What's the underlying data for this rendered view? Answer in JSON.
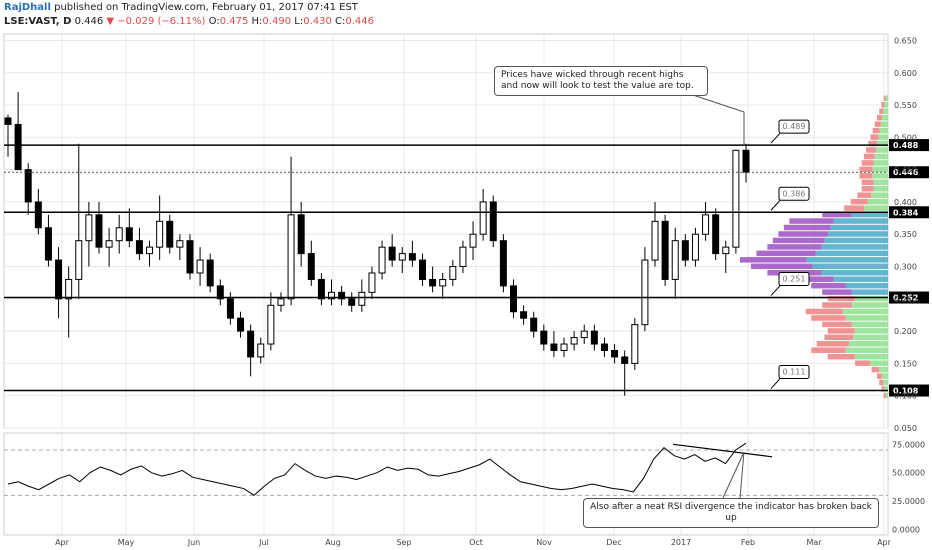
{
  "header": {
    "author": "RajDhall",
    "published": "published on TradingView.com, February 01, 2017 07:41 EST",
    "symbol": "LSE:VAST, D",
    "last": "0.446",
    "arrow": "▼",
    "change": "−0.029 (−6.11%)",
    "o_label": "O:",
    "o": "0.475",
    "h_label": "H:",
    "h": "0.490",
    "l_label": "L:",
    "l": "0.430",
    "c_label": "C:",
    "c": "0.446"
  },
  "annotations": {
    "note_price": "Prices have wicked through recent highs and now will look to test the value are top.",
    "note_rsi": "Also after a neat RSI divergence the indicator has broken back up"
  },
  "colors": {
    "up": "#ffffff",
    "down": "#000000",
    "wick": "#000000",
    "vp_up": "#48a9c5",
    "vp_down": "#9b4fc2",
    "vp_up_out": "#8ee08e",
    "vp_down_out": "#f08080",
    "level": "#000000",
    "rsi": "#000000",
    "grid": "#e8e8e8"
  },
  "chart_data": [
    {
      "type": "candlestick",
      "symbol": "LSE:VAST",
      "interval": "D",
      "ylim": [
        0.05,
        0.66
      ],
      "y_ticks": [
        "0.650",
        "0.600",
        "0.550",
        "0.500",
        "0.450",
        "0.400",
        "0.350",
        "0.300",
        "0.250",
        "0.200",
        "0.150",
        "0.100",
        "0.050"
      ],
      "x_ticks": [
        "Apr",
        "May",
        "Jun",
        "Jul",
        "Aug",
        "Sep",
        "Oct",
        "Nov",
        "Dec",
        "2017",
        "Feb",
        "Mar",
        "Apr"
      ],
      "last_price": "0.446",
      "levels": [
        {
          "value": 0.488,
          "label": "0.488",
          "callout": "0.489"
        },
        {
          "value": 0.384,
          "label": "0.384",
          "callout": "0.386"
        },
        {
          "value": 0.252,
          "label": "0.252",
          "callout": "0.251"
        },
        {
          "value": 0.108,
          "label": "0.108",
          "callout": "0.111"
        }
      ],
      "ohlc_approx": [
        [
          0.53,
          0.535,
          0.47,
          0.52
        ],
        [
          0.52,
          0.57,
          0.45,
          0.45
        ],
        [
          0.45,
          0.46,
          0.38,
          0.4
        ],
        [
          0.4,
          0.42,
          0.35,
          0.36
        ],
        [
          0.36,
          0.38,
          0.3,
          0.31
        ],
        [
          0.31,
          0.33,
          0.22,
          0.25
        ],
        [
          0.25,
          0.3,
          0.19,
          0.28
        ],
        [
          0.28,
          0.49,
          0.25,
          0.34
        ],
        [
          0.34,
          0.4,
          0.3,
          0.38
        ],
        [
          0.38,
          0.4,
          0.32,
          0.33
        ],
        [
          0.33,
          0.36,
          0.3,
          0.34
        ],
        [
          0.34,
          0.38,
          0.32,
          0.36
        ],
        [
          0.36,
          0.39,
          0.33,
          0.34
        ],
        [
          0.34,
          0.36,
          0.31,
          0.32
        ],
        [
          0.32,
          0.34,
          0.3,
          0.33
        ],
        [
          0.33,
          0.41,
          0.31,
          0.37
        ],
        [
          0.37,
          0.38,
          0.32,
          0.33
        ],
        [
          0.33,
          0.35,
          0.31,
          0.34
        ],
        [
          0.34,
          0.35,
          0.28,
          0.29
        ],
        [
          0.29,
          0.33,
          0.27,
          0.31
        ],
        [
          0.31,
          0.32,
          0.26,
          0.27
        ],
        [
          0.27,
          0.28,
          0.24,
          0.25
        ],
        [
          0.25,
          0.26,
          0.21,
          0.22
        ],
        [
          0.22,
          0.23,
          0.19,
          0.2
        ],
        [
          0.2,
          0.21,
          0.13,
          0.16
        ],
        [
          0.16,
          0.19,
          0.15,
          0.18
        ],
        [
          0.18,
          0.26,
          0.17,
          0.24
        ],
        [
          0.24,
          0.26,
          0.23,
          0.25
        ],
        [
          0.25,
          0.47,
          0.24,
          0.38
        ],
        [
          0.38,
          0.4,
          0.3,
          0.32
        ],
        [
          0.32,
          0.34,
          0.27,
          0.28
        ],
        [
          0.28,
          0.29,
          0.24,
          0.25
        ],
        [
          0.25,
          0.28,
          0.24,
          0.26
        ],
        [
          0.26,
          0.27,
          0.24,
          0.25
        ],
        [
          0.25,
          0.26,
          0.23,
          0.24
        ],
        [
          0.24,
          0.28,
          0.23,
          0.26
        ],
        [
          0.26,
          0.3,
          0.25,
          0.29
        ],
        [
          0.29,
          0.34,
          0.28,
          0.33
        ],
        [
          0.33,
          0.35,
          0.3,
          0.31
        ],
        [
          0.31,
          0.33,
          0.29,
          0.32
        ],
        [
          0.32,
          0.34,
          0.3,
          0.31
        ],
        [
          0.31,
          0.32,
          0.27,
          0.28
        ],
        [
          0.28,
          0.3,
          0.26,
          0.27
        ],
        [
          0.27,
          0.29,
          0.25,
          0.28
        ],
        [
          0.28,
          0.31,
          0.27,
          0.3
        ],
        [
          0.3,
          0.34,
          0.29,
          0.33
        ],
        [
          0.33,
          0.37,
          0.31,
          0.35
        ],
        [
          0.35,
          0.42,
          0.34,
          0.4
        ],
        [
          0.4,
          0.41,
          0.33,
          0.34
        ],
        [
          0.34,
          0.35,
          0.26,
          0.27
        ],
        [
          0.27,
          0.28,
          0.22,
          0.23
        ],
        [
          0.23,
          0.24,
          0.21,
          0.22
        ],
        [
          0.22,
          0.23,
          0.19,
          0.2
        ],
        [
          0.2,
          0.21,
          0.17,
          0.18
        ],
        [
          0.18,
          0.2,
          0.16,
          0.17
        ],
        [
          0.17,
          0.19,
          0.16,
          0.18
        ],
        [
          0.18,
          0.2,
          0.17,
          0.19
        ],
        [
          0.19,
          0.21,
          0.18,
          0.2
        ],
        [
          0.2,
          0.21,
          0.17,
          0.18
        ],
        [
          0.18,
          0.19,
          0.16,
          0.17
        ],
        [
          0.17,
          0.18,
          0.15,
          0.16
        ],
        [
          0.16,
          0.17,
          0.1,
          0.15
        ],
        [
          0.15,
          0.22,
          0.14,
          0.21
        ],
        [
          0.21,
          0.33,
          0.2,
          0.31
        ],
        [
          0.31,
          0.4,
          0.3,
          0.37
        ],
        [
          0.37,
          0.38,
          0.27,
          0.28
        ],
        [
          0.28,
          0.36,
          0.25,
          0.34
        ],
        [
          0.34,
          0.35,
          0.3,
          0.31
        ],
        [
          0.31,
          0.36,
          0.3,
          0.35
        ],
        [
          0.35,
          0.4,
          0.34,
          0.38
        ],
        [
          0.38,
          0.39,
          0.31,
          0.32
        ],
        [
          0.32,
          0.34,
          0.29,
          0.33
        ],
        [
          0.33,
          0.4,
          0.32,
          0.48
        ],
        [
          0.48,
          0.49,
          0.43,
          0.446
        ]
      ]
    },
    {
      "type": "volume_profile",
      "price_levels": [
        0.56,
        0.55,
        0.54,
        0.53,
        0.52,
        0.51,
        0.5,
        0.49,
        0.48,
        0.47,
        0.46,
        0.45,
        0.44,
        0.43,
        0.42,
        0.41,
        0.4,
        0.39,
        0.38,
        0.37,
        0.36,
        0.35,
        0.34,
        0.33,
        0.32,
        0.31,
        0.3,
        0.29,
        0.28,
        0.27,
        0.26,
        0.25,
        0.24,
        0.23,
        0.22,
        0.21,
        0.2,
        0.19,
        0.18,
        0.17,
        0.16,
        0.15,
        0.14,
        0.13,
        0.12,
        0.11,
        0.1
      ],
      "volume": [
        4,
        6,
        8,
        10,
        12,
        14,
        16,
        18,
        20,
        22,
        24,
        26,
        26,
        24,
        24,
        28,
        34,
        40,
        60,
        90,
        95,
        100,
        105,
        110,
        120,
        135,
        125,
        110,
        90,
        70,
        60,
        55,
        60,
        75,
        70,
        60,
        55,
        58,
        65,
        70,
        55,
        30,
        15,
        10,
        8,
        6,
        4
      ],
      "value_area_high": 0.384,
      "value_area_low": 0.252
    },
    {
      "type": "line",
      "name": "RSI",
      "ylim": [
        -5,
        85
      ],
      "y_ticks": [
        "75.0000",
        "50.0000",
        "25.0000",
        "0.0000"
      ],
      "bands": [
        70,
        30
      ],
      "values": [
        40,
        42,
        38,
        35,
        40,
        45,
        48,
        42,
        50,
        55,
        52,
        48,
        53,
        56,
        50,
        47,
        49,
        52,
        46,
        44,
        42,
        40,
        38,
        36,
        30,
        38,
        45,
        48,
        58,
        52,
        47,
        45,
        47,
        46,
        44,
        47,
        50,
        55,
        52,
        54,
        53,
        48,
        47,
        49,
        51,
        54,
        57,
        62,
        55,
        48,
        42,
        40,
        38,
        36,
        35,
        36,
        38,
        40,
        38,
        36,
        35,
        33,
        45,
        62,
        72,
        65,
        62,
        66,
        60,
        63,
        58,
        70,
        76
      ]
    }
  ]
}
